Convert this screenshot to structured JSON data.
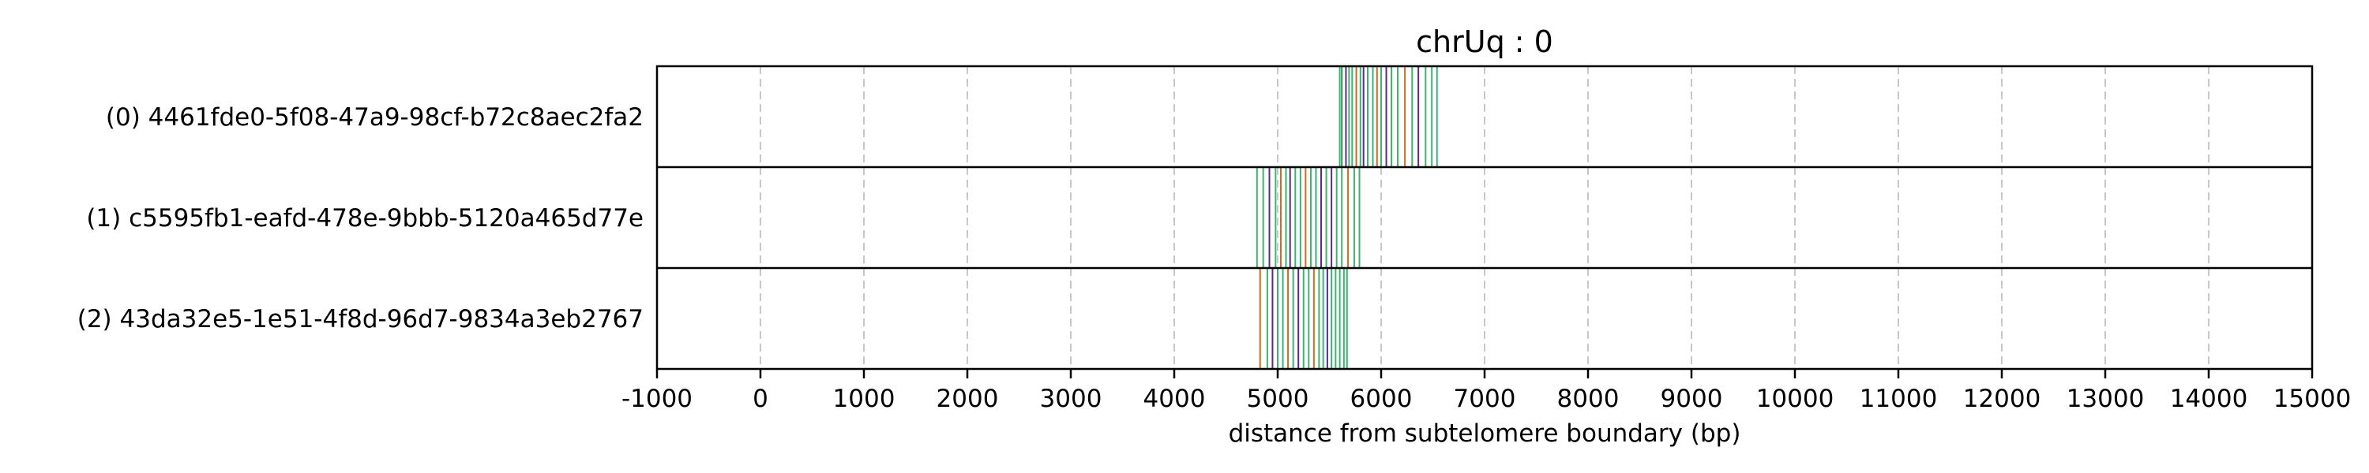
{
  "chart_data": {
    "type": "event-track",
    "title": "chrUq : 0",
    "xlabel": "distance from subtelomere boundary (bp)",
    "xlim": [
      -1000,
      15000
    ],
    "xticks": [
      -1000,
      0,
      1000,
      2000,
      3000,
      4000,
      5000,
      6000,
      7000,
      8000,
      9000,
      10000,
      11000,
      12000,
      13000,
      14000,
      15000
    ],
    "grid": "vertical dashed",
    "colors": {
      "green": "#3cb371",
      "purple": "#5b2a86",
      "orange": "#d2691e",
      "teal": "#2e8b57"
    },
    "reads": [
      {
        "label": "(0) 4461fde0-5f08-47a9-98cf-b72c8aec2fa2",
        "events": [
          {
            "x": 5600,
            "c": "green"
          },
          {
            "x": 5620,
            "c": "teal"
          },
          {
            "x": 5660,
            "c": "purple"
          },
          {
            "x": 5690,
            "c": "green"
          },
          {
            "x": 5720,
            "c": "green"
          },
          {
            "x": 5760,
            "c": "orange"
          },
          {
            "x": 5800,
            "c": "green"
          },
          {
            "x": 5830,
            "c": "purple"
          },
          {
            "x": 5870,
            "c": "green"
          },
          {
            "x": 5920,
            "c": "green"
          },
          {
            "x": 5960,
            "c": "orange"
          },
          {
            "x": 6000,
            "c": "green"
          },
          {
            "x": 6050,
            "c": "purple"
          },
          {
            "x": 6100,
            "c": "green"
          },
          {
            "x": 6160,
            "c": "green"
          },
          {
            "x": 6230,
            "c": "orange"
          },
          {
            "x": 6300,
            "c": "green"
          },
          {
            "x": 6360,
            "c": "purple"
          },
          {
            "x": 6430,
            "c": "green"
          },
          {
            "x": 6490,
            "c": "green"
          },
          {
            "x": 6540,
            "c": "green"
          }
        ]
      },
      {
        "label": "(1) c5595fb1-eafd-478e-9bbb-5120a465d77e",
        "events": [
          {
            "x": 4800,
            "c": "green"
          },
          {
            "x": 4860,
            "c": "green"
          },
          {
            "x": 4920,
            "c": "purple"
          },
          {
            "x": 4980,
            "c": "green"
          },
          {
            "x": 5030,
            "c": "orange"
          },
          {
            "x": 5080,
            "c": "green"
          },
          {
            "x": 5120,
            "c": "purple"
          },
          {
            "x": 5170,
            "c": "green"
          },
          {
            "x": 5220,
            "c": "green"
          },
          {
            "x": 5270,
            "c": "orange"
          },
          {
            "x": 5320,
            "c": "green"
          },
          {
            "x": 5370,
            "c": "green"
          },
          {
            "x": 5420,
            "c": "purple"
          },
          {
            "x": 5470,
            "c": "green"
          },
          {
            "x": 5520,
            "c": "purple"
          },
          {
            "x": 5570,
            "c": "green"
          },
          {
            "x": 5620,
            "c": "green"
          },
          {
            "x": 5680,
            "c": "orange"
          },
          {
            "x": 5740,
            "c": "green"
          },
          {
            "x": 5790,
            "c": "green"
          }
        ]
      },
      {
        "label": "(2) 43da32e5-1e51-4f8d-96d7-9834a3eb2767",
        "events": [
          {
            "x": 4830,
            "c": "orange"
          },
          {
            "x": 4900,
            "c": "green"
          },
          {
            "x": 4950,
            "c": "purple"
          },
          {
            "x": 5000,
            "c": "green"
          },
          {
            "x": 5050,
            "c": "green"
          },
          {
            "x": 5100,
            "c": "orange"
          },
          {
            "x": 5150,
            "c": "green"
          },
          {
            "x": 5200,
            "c": "purple"
          },
          {
            "x": 5250,
            "c": "green"
          },
          {
            "x": 5300,
            "c": "green"
          },
          {
            "x": 5350,
            "c": "orange"
          },
          {
            "x": 5400,
            "c": "green"
          },
          {
            "x": 5440,
            "c": "green"
          },
          {
            "x": 5480,
            "c": "purple"
          },
          {
            "x": 5520,
            "c": "green"
          },
          {
            "x": 5560,
            "c": "green"
          },
          {
            "x": 5600,
            "c": "green"
          },
          {
            "x": 5640,
            "c": "green"
          },
          {
            "x": 5670,
            "c": "green"
          }
        ]
      }
    ]
  }
}
